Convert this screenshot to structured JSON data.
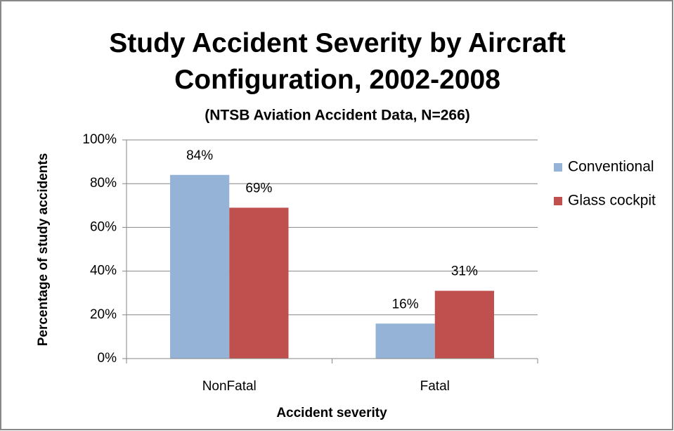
{
  "chart_data": {
    "type": "bar",
    "title": "Study Accident Severity by Aircraft Configuration, 2002-2008",
    "subtitle": "(NTSB Aviation Accident Data, N=266)",
    "x_label": "Accident severity",
    "y_label": "Percentage of study accidents",
    "categories": [
      "NonFatal",
      "Fatal"
    ],
    "series": [
      {
        "name": "Conventional",
        "color": "#95b3d7",
        "values": [
          84,
          16
        ],
        "value_labels": [
          "84%",
          "16%"
        ]
      },
      {
        "name": "Glass cockpit",
        "color": "#c0504d",
        "values": [
          69,
          31
        ],
        "value_labels": [
          "69%",
          "31%"
        ]
      }
    ],
    "ylim": [
      0,
      100
    ],
    "yticks": [
      {
        "value": 0,
        "label": "0%"
      },
      {
        "value": 20,
        "label": "20%"
      },
      {
        "value": 40,
        "label": "40%"
      },
      {
        "value": 60,
        "label": "60%"
      },
      {
        "value": 80,
        "label": "80%"
      },
      {
        "value": 100,
        "label": "100%"
      }
    ],
    "grid": true,
    "legend": "right"
  }
}
